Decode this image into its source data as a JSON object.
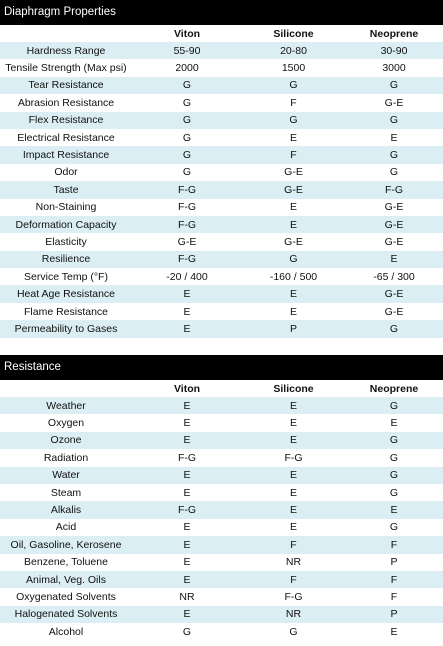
{
  "diaphragm": {
    "title": "Diaphragm Properties",
    "columns": [
      "",
      "Viton",
      "Silicone",
      "Neoprene"
    ],
    "rows": [
      [
        "Hardness Range",
        "55-90",
        "20-80",
        "30-90"
      ],
      [
        "Tensile Strength (Max psi)",
        "2000",
        "1500",
        "3000"
      ],
      [
        "Tear Resistance",
        "G",
        "G",
        "G"
      ],
      [
        "Abrasion Resistance",
        "G",
        "F",
        "G-E"
      ],
      [
        "Flex Resistance",
        "G",
        "G",
        "G"
      ],
      [
        "Electrical Resistance",
        "G",
        "E",
        "E"
      ],
      [
        "Impact Resistance",
        "G",
        "F",
        "G"
      ],
      [
        "Odor",
        "G",
        "G-E",
        "G"
      ],
      [
        "Taste",
        "F-G",
        "G-E",
        "F-G"
      ],
      [
        "Non-Staining",
        "F-G",
        "E",
        "G-E"
      ],
      [
        "Deformation Capacity",
        "F-G",
        "E",
        "G-E"
      ],
      [
        "Elasticity",
        "G-E",
        "G-E",
        "G-E"
      ],
      [
        "Resilience",
        "F-G",
        "G",
        "E"
      ],
      [
        "Service Temp (°F)",
        "-20 / 400",
        "-160 / 500",
        "-65 / 300"
      ],
      [
        "Heat Age Resistance",
        "E",
        "E",
        "G-E"
      ],
      [
        "Flame Resistance",
        "E",
        "E",
        "G-E"
      ],
      [
        "Permeability to Gases",
        "E",
        "P",
        "G"
      ]
    ]
  },
  "resistance": {
    "title": "Resistance",
    "columns": [
      "",
      "Viton",
      "Silicone",
      "Neoprene"
    ],
    "rows": [
      [
        "Weather",
        "E",
        "E",
        "G"
      ],
      [
        "Oxygen",
        "E",
        "E",
        "E"
      ],
      [
        "Ozone",
        "E",
        "E",
        "G"
      ],
      [
        "Radiation",
        "F-G",
        "F-G",
        "G"
      ],
      [
        "Water",
        "E",
        "E",
        "G"
      ],
      [
        "Steam",
        "E",
        "E",
        "G"
      ],
      [
        "Alkalis",
        "F-G",
        "E",
        "E"
      ],
      [
        "Acid",
        "E",
        "E",
        "G"
      ],
      [
        "Oil, Gasoline, Kerosene",
        "E",
        "F",
        "F"
      ],
      [
        "Benzene, Toluene",
        "E",
        "NR",
        "P"
      ],
      [
        "Animal, Veg. Oils",
        "E",
        "F",
        "F"
      ],
      [
        "Oxygenated Solvents",
        "NR",
        "F-G",
        "F"
      ],
      [
        "Halogenated Solvents",
        "E",
        "NR",
        "P"
      ],
      [
        "Alcohol",
        "G",
        "G",
        "E"
      ]
    ]
  }
}
